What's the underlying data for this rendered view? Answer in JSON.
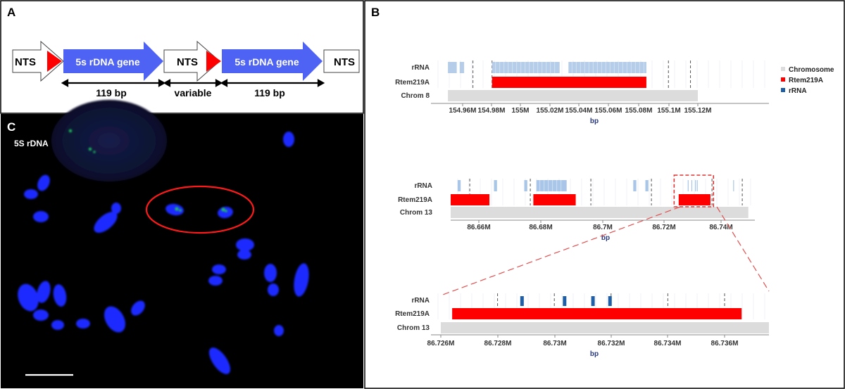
{
  "panel_a": {
    "label": "A",
    "nts": [
      "NTS",
      "NTS",
      "NTS"
    ],
    "genes": [
      "5s rDNA gene",
      "5s rDNA gene"
    ],
    "lengths": [
      "119 bp",
      "variable",
      "119 bp"
    ],
    "colors": {
      "gene": "#4e63f3",
      "promoter": "#ff0000",
      "nts": "#ffffff"
    }
  },
  "panel_b": {
    "label": "B",
    "legend": [
      {
        "label": "Chromosome",
        "color": "#dcdcdc"
      },
      {
        "label": "Rtem219A",
        "color": "#ff0000"
      },
      {
        "label": "rRNA",
        "color": "#1f5fa8"
      }
    ]
  },
  "panel_c": {
    "label": "C",
    "probe_label": "5S rDNA"
  },
  "chart_data": [
    {
      "type": "genome-track",
      "rows": [
        "rRNA",
        "Rtem219A",
        "Chrom 8"
      ],
      "x_tick_labels": [
        "154.96M",
        "154.98M",
        "155M",
        "155.02M",
        "155.04M",
        "155.06M",
        "155.08M",
        "155.1M",
        "155.12M"
      ],
      "xlabel": "bp",
      "xlim": [
        154.95,
        155.12
      ],
      "unit": "M",
      "dashed_lines": [
        154.967,
        154.98,
        155.1,
        155.115
      ],
      "chromosome": [
        154.95,
        155.12
      ],
      "rtem219a": [
        [
          154.98,
          155.085
        ]
      ],
      "rrna_blocks": [
        [
          154.95,
          154.956
        ],
        [
          154.958,
          154.961
        ],
        [
          154.98,
          155.026
        ],
        [
          155.032,
          155.085
        ]
      ]
    },
    {
      "type": "genome-track",
      "rows": [
        "rRNA",
        "Rtem219A",
        "Chrom 13"
      ],
      "x_tick_labels": [
        "86.66M",
        "86.68M",
        "86.7M",
        "86.72M",
        "86.74M"
      ],
      "xlabel": "bp",
      "xlim": [
        86.65,
        86.75
      ],
      "unit": "M",
      "dashed_lines": [
        86.657,
        86.677,
        86.697,
        86.717,
        86.737,
        86.747
      ],
      "chromosome": [
        86.65,
        86.749
      ],
      "rtem219a": [
        [
          86.65,
          86.6635
        ],
        [
          86.678,
          86.692
        ],
        [
          86.726,
          86.7365
        ]
      ],
      "rrna_blocks": [
        [
          86.653,
          86.654
        ],
        [
          86.665,
          86.666
        ],
        [
          86.675,
          86.676
        ],
        [
          86.679,
          86.689
        ],
        [
          86.711,
          86.712
        ],
        [
          86.715,
          86.716
        ],
        [
          86.729,
          86.7292
        ],
        [
          86.7302,
          86.7304
        ],
        [
          86.7314,
          86.7316
        ],
        [
          86.732,
          86.7322
        ],
        [
          86.744,
          86.7442
        ]
      ],
      "highlight_box": [
        86.7245,
        86.7375
      ]
    },
    {
      "type": "genome-track",
      "rows": [
        "rRNA",
        "Rtem219A",
        "Chrom 13"
      ],
      "x_tick_labels": [
        "86.726M",
        "86.728M",
        "86.73M",
        "86.732M",
        "86.734M",
        "86.736M"
      ],
      "xlabel": "bp",
      "xlim": [
        86.726,
        86.7378
      ],
      "unit": "M",
      "dashed_lines": [
        86.728,
        86.73,
        86.732,
        86.734,
        86.736
      ],
      "chromosome": [
        86.726,
        86.7378
      ],
      "rtem219a": [
        [
          86.7264,
          86.7366
        ]
      ],
      "rrna_blocks": [
        [
          86.7288,
          86.7289
        ],
        [
          86.7303,
          86.7304
        ],
        [
          86.7313,
          86.7314
        ],
        [
          86.7319,
          86.732
        ]
      ]
    }
  ]
}
